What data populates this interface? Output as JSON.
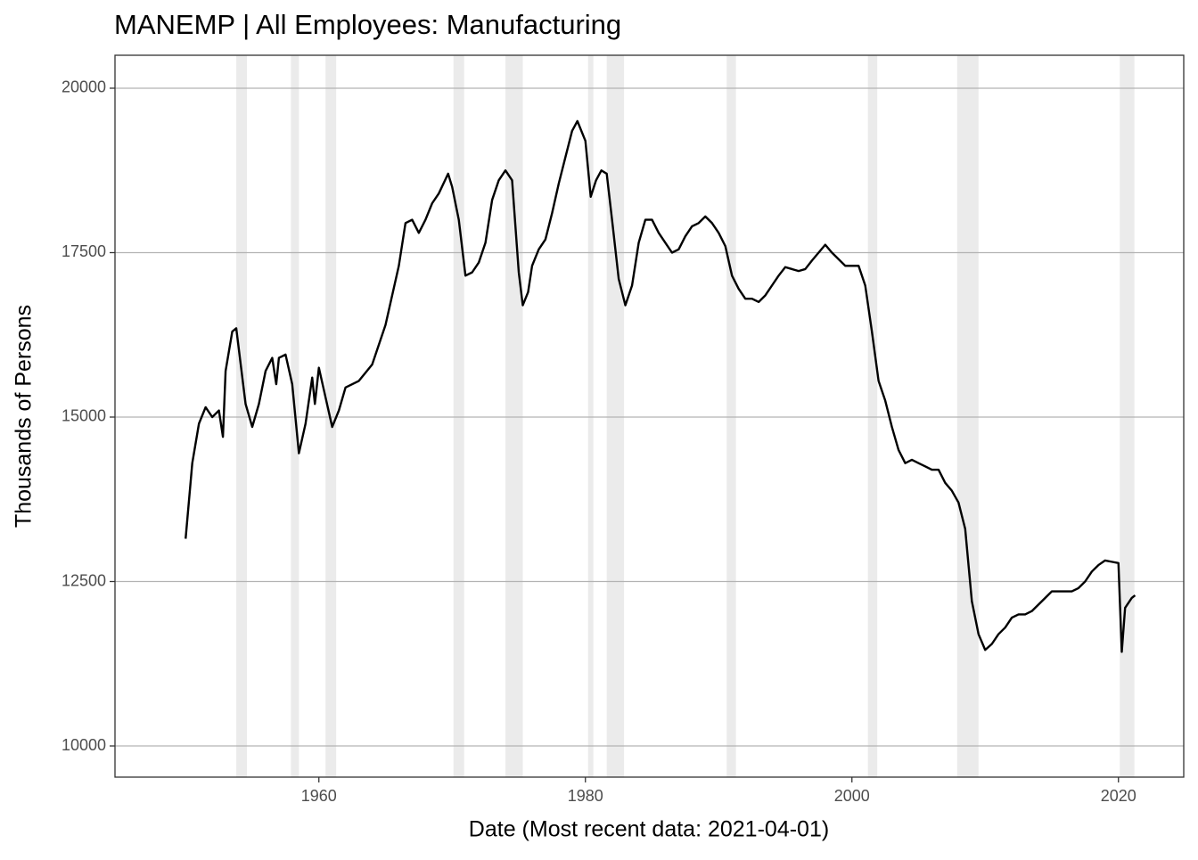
{
  "chart_data": {
    "type": "line",
    "title": "MANEMP | All Employees: Manufacturing",
    "x_label": "Date (Most recent data: 2021-04-01)",
    "y_label": "Thousands of Persons",
    "color": "#000000",
    "recession_color": "#ebebeb",
    "grid": true,
    "xlim": [
      1944.7,
      2024.9
    ],
    "ylim": [
      9526,
      20501
    ],
    "xticks": [
      1960,
      1980,
      2000,
      2020
    ],
    "yticks": [
      10000,
      12500,
      15000,
      17500,
      20000
    ],
    "recessions": [
      [
        1953.8,
        1954.6
      ],
      [
        1957.9,
        1958.5
      ],
      [
        1960.5,
        1961.3
      ],
      [
        1970.1,
        1970.9
      ],
      [
        1974.0,
        1975.3
      ],
      [
        1980.2,
        1980.6
      ],
      [
        1981.6,
        1982.9
      ],
      [
        1990.6,
        1991.3
      ],
      [
        2001.2,
        2001.9
      ],
      [
        2007.9,
        2009.5
      ],
      [
        2020.1,
        2021.2
      ]
    ],
    "x": [
      1950.0,
      1950.5,
      1951.0,
      1951.5,
      1952.0,
      1952.5,
      1952.8,
      1953.0,
      1953.5,
      1953.8,
      1954.5,
      1955.0,
      1955.5,
      1956.0,
      1956.5,
      1956.8,
      1957.0,
      1957.5,
      1958.0,
      1958.5,
      1959.0,
      1959.5,
      1959.7,
      1960.0,
      1960.5,
      1961.0,
      1961.5,
      1962.0,
      1963.0,
      1964.0,
      1965.0,
      1966.0,
      1966.5,
      1967.0,
      1967.5,
      1968.0,
      1968.5,
      1969.0,
      1969.7,
      1970.0,
      1970.5,
      1971.0,
      1971.5,
      1972.0,
      1972.5,
      1973.0,
      1973.5,
      1974.0,
      1974.5,
      1975.0,
      1975.3,
      1975.7,
      1976.0,
      1976.5,
      1977.0,
      1977.5,
      1978.0,
      1978.5,
      1979.0,
      1979.4,
      1980.0,
      1980.4,
      1980.8,
      1981.2,
      1981.6,
      1982.0,
      1982.5,
      1983.0,
      1983.5,
      1984.0,
      1984.5,
      1985.0,
      1985.5,
      1986.0,
      1986.5,
      1987.0,
      1987.5,
      1988.0,
      1988.5,
      1989.0,
      1989.5,
      1990.0,
      1990.5,
      1991.0,
      1991.5,
      1992.0,
      1992.5,
      1993.0,
      1993.5,
      1994.0,
      1994.5,
      1995.0,
      1995.5,
      1996.0,
      1996.5,
      1997.0,
      1997.5,
      1998.0,
      1998.5,
      1999.0,
      1999.5,
      2000.0,
      2000.5,
      2001.0,
      2001.5,
      2002.0,
      2002.5,
      2003.0,
      2003.5,
      2004.0,
      2004.5,
      2005.0,
      2005.5,
      2006.0,
      2006.5,
      2007.0,
      2007.5,
      2008.0,
      2008.5,
      2009.0,
      2009.5,
      2010.0,
      2010.5,
      2011.0,
      2011.5,
      2012.0,
      2012.5,
      2013.0,
      2013.5,
      2014.0,
      2014.5,
      2015.0,
      2015.5,
      2016.0,
      2016.5,
      2017.0,
      2017.5,
      2018.0,
      2018.5,
      2019.0,
      2019.5,
      2020.0,
      2020.25,
      2020.5,
      2021.0,
      2021.25
    ],
    "values": [
      13150,
      14300,
      14900,
      15150,
      15000,
      15100,
      14700,
      15700,
      16300,
      16350,
      15200,
      14850,
      15200,
      15700,
      15900,
      15500,
      15900,
      15950,
      15500,
      14450,
      14900,
      15600,
      15200,
      15750,
      15300,
      14850,
      15100,
      15450,
      15550,
      15800,
      16400,
      17300,
      17950,
      18000,
      17800,
      18000,
      18250,
      18400,
      18700,
      18500,
      18000,
      17150,
      17200,
      17350,
      17650,
      18300,
      18600,
      18750,
      18600,
      17200,
      16700,
      16900,
      17300,
      17550,
      17700,
      18100,
      18550,
      18950,
      19350,
      19500,
      19200,
      18350,
      18600,
      18750,
      18700,
      18000,
      17100,
      16700,
      17000,
      17650,
      18000,
      18000,
      17800,
      17650,
      17500,
      17550,
      17750,
      17900,
      17950,
      18050,
      17950,
      17800,
      17600,
      17150,
      16950,
      16800,
      16800,
      16750,
      16850,
      17000,
      17150,
      17280,
      17250,
      17220,
      17250,
      17380,
      17500,
      17620,
      17500,
      17400,
      17300,
      17300,
      17300,
      17000,
      16300,
      15550,
      15250,
      14850,
      14500,
      14300,
      14350,
      14300,
      14250,
      14200,
      14200,
      14000,
      13880,
      13700,
      13300,
      12200,
      11700,
      11460,
      11550,
      11700,
      11800,
      11950,
      12000,
      12000,
      12050,
      12150,
      12250,
      12350,
      12350,
      12350,
      12350,
      12400,
      12500,
      12650,
      12750,
      12820,
      12800,
      12780,
      11430,
      12100,
      12250,
      12290
    ]
  }
}
